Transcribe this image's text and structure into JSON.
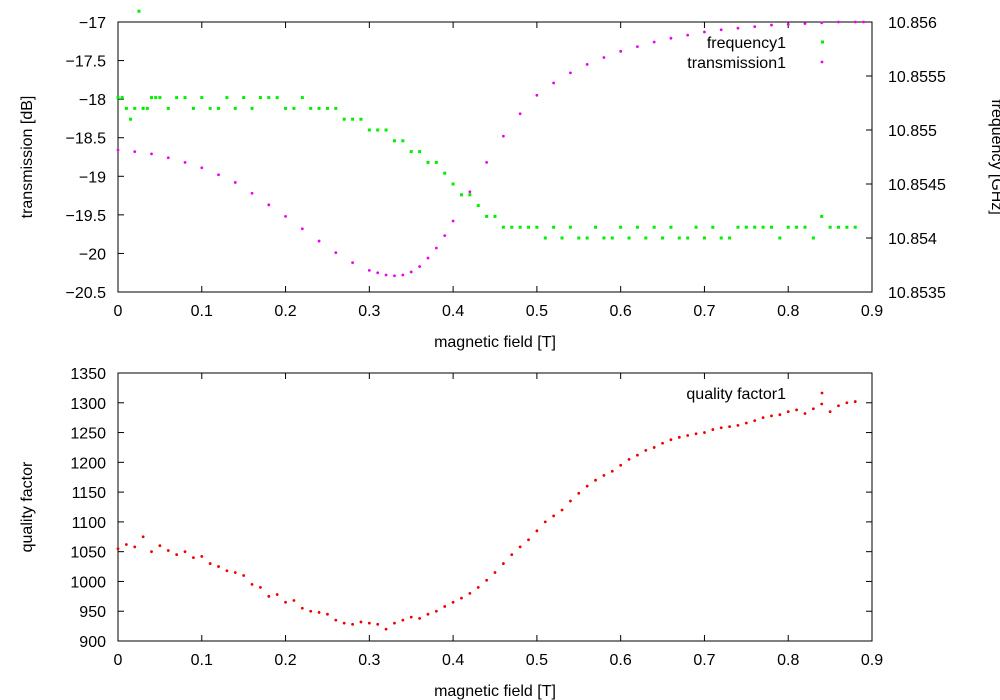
{
  "chart_data": [
    {
      "type": "scatter",
      "xlabel": "magnetic field [T]",
      "ylabel": "transmission [dB]",
      "y2label": "frequency [GHz]",
      "xlim": [
        0,
        0.9
      ],
      "ylim": [
        -20.5,
        -17
      ],
      "y2lim": [
        10.8535,
        10.856
      ],
      "xticks": [
        "0",
        "0.1",
        "0.2",
        "0.3",
        "0.4",
        "0.5",
        "0.6",
        "0.7",
        "0.8",
        "0.9"
      ],
      "yticks": [
        "-20.5",
        "-20",
        "-19.5",
        "-19",
        "-18.5",
        "-18",
        "-17.5",
        "-17"
      ],
      "y2ticks": [
        "10.8535",
        "10.854",
        "10.8545",
        "10.855",
        "10.8555",
        "10.856"
      ],
      "legend_position": "top-right",
      "series": [
        {
          "name": "frequency1",
          "axis": "y2",
          "color": "#00ee00",
          "marker": "square",
          "x": [
            0,
            0.005,
            0.01,
            0.015,
            0.02,
            0.025,
            0.03,
            0.035,
            0.04,
            0.045,
            0.05,
            0.06,
            0.07,
            0.08,
            0.09,
            0.1,
            0.11,
            0.12,
            0.13,
            0.14,
            0.15,
            0.16,
            0.17,
            0.18,
            0.19,
            0.2,
            0.21,
            0.22,
            0.23,
            0.24,
            0.25,
            0.26,
            0.27,
            0.28,
            0.29,
            0.3,
            0.31,
            0.32,
            0.33,
            0.34,
            0.35,
            0.36,
            0.37,
            0.38,
            0.39,
            0.4,
            0.41,
            0.42,
            0.43,
            0.44,
            0.45,
            0.46,
            0.47,
            0.48,
            0.49,
            0.5,
            0.51,
            0.52,
            0.53,
            0.54,
            0.55,
            0.56,
            0.57,
            0.58,
            0.59,
            0.6,
            0.61,
            0.62,
            0.63,
            0.64,
            0.65,
            0.66,
            0.67,
            0.68,
            0.69,
            0.7,
            0.71,
            0.72,
            0.73,
            0.74,
            0.75,
            0.76,
            0.77,
            0.78,
            0.79,
            0.8,
            0.81,
            0.82,
            0.83,
            0.84,
            0.85,
            0.86,
            0.87,
            0.88
          ],
          "y": [
            10.8553,
            10.8553,
            10.8552,
            10.8551,
            10.8552,
            10.8561,
            10.8552,
            10.8552,
            10.8553,
            10.8553,
            10.8553,
            10.8552,
            10.8553,
            10.8553,
            10.8552,
            10.8553,
            10.8552,
            10.8552,
            10.8553,
            10.8552,
            10.8553,
            10.8552,
            10.8553,
            10.8553,
            10.8553,
            10.8552,
            10.8552,
            10.8553,
            10.8552,
            10.8552,
            10.8552,
            10.8552,
            10.8551,
            10.8551,
            10.8551,
            10.855,
            10.855,
            10.855,
            10.8549,
            10.8549,
            10.8548,
            10.8548,
            10.8547,
            10.8547,
            10.8546,
            10.8545,
            10.8544,
            10.8544,
            10.8543,
            10.8542,
            10.8542,
            10.8541,
            10.8541,
            10.8541,
            10.8541,
            10.8541,
            10.854,
            10.8541,
            10.854,
            10.8541,
            10.854,
            10.854,
            10.8541,
            10.854,
            10.854,
            10.8541,
            10.854,
            10.8541,
            10.854,
            10.8541,
            10.854,
            10.8541,
            10.854,
            10.854,
            10.8541,
            10.854,
            10.8541,
            10.854,
            10.854,
            10.8541,
            10.8541,
            10.8541,
            10.8541,
            10.8541,
            10.854,
            10.8541,
            10.8541,
            10.8541,
            10.854,
            10.8542,
            10.8541,
            10.8541,
            10.8541,
            10.8541
          ]
        },
        {
          "name": "transmission1",
          "axis": "y",
          "color": "#ee00ee",
          "marker": "dot",
          "x": [
            0,
            0.02,
            0.04,
            0.06,
            0.08,
            0.1,
            0.12,
            0.14,
            0.16,
            0.18,
            0.2,
            0.22,
            0.24,
            0.26,
            0.28,
            0.3,
            0.31,
            0.32,
            0.33,
            0.34,
            0.35,
            0.36,
            0.37,
            0.38,
            0.39,
            0.4,
            0.42,
            0.44,
            0.46,
            0.48,
            0.5,
            0.52,
            0.54,
            0.56,
            0.58,
            0.6,
            0.62,
            0.64,
            0.66,
            0.68,
            0.7,
            0.72,
            0.74,
            0.76,
            0.78,
            0.8,
            0.82,
            0.84,
            0.86,
            0.88,
            0.89
          ],
          "y": [
            -18.66,
            -18.68,
            -18.71,
            -18.76,
            -18.82,
            -18.89,
            -18.98,
            -19.08,
            -19.22,
            -19.37,
            -19.52,
            -19.68,
            -19.84,
            -19.99,
            -20.12,
            -20.22,
            -20.25,
            -20.28,
            -20.29,
            -20.28,
            -20.24,
            -20.17,
            -20.06,
            -19.93,
            -19.77,
            -19.58,
            -19.2,
            -18.82,
            -18.48,
            -18.19,
            -17.95,
            -17.79,
            -17.66,
            -17.55,
            -17.46,
            -17.38,
            -17.32,
            -17.26,
            -17.21,
            -17.17,
            -17.13,
            -17.1,
            -17.08,
            -17.06,
            -17.04,
            -17.03,
            -17.02,
            -17.01,
            -17.0,
            -17.0,
            -17.0
          ]
        }
      ]
    },
    {
      "type": "scatter",
      "xlabel": "magnetic field [T]",
      "ylabel": "quality factor",
      "xlim": [
        0,
        0.9
      ],
      "ylim": [
        900,
        1350
      ],
      "xticks": [
        "0",
        "0.1",
        "0.2",
        "0.3",
        "0.4",
        "0.5",
        "0.6",
        "0.7",
        "0.8",
        "0.9"
      ],
      "yticks": [
        "900",
        "950",
        "1000",
        "1050",
        "1100",
        "1150",
        "1200",
        "1250",
        "1300",
        "1350"
      ],
      "legend_position": "top-right",
      "series": [
        {
          "name": "quality factor1",
          "color": "#ee0000",
          "marker": "dot",
          "x": [
            0,
            0.01,
            0.02,
            0.03,
            0.04,
            0.05,
            0.06,
            0.07,
            0.08,
            0.09,
            0.1,
            0.11,
            0.12,
            0.13,
            0.14,
            0.15,
            0.16,
            0.17,
            0.18,
            0.19,
            0.2,
            0.21,
            0.22,
            0.23,
            0.24,
            0.25,
            0.26,
            0.27,
            0.28,
            0.29,
            0.3,
            0.31,
            0.32,
            0.33,
            0.34,
            0.35,
            0.36,
            0.37,
            0.38,
            0.39,
            0.4,
            0.41,
            0.42,
            0.43,
            0.44,
            0.45,
            0.46,
            0.47,
            0.48,
            0.49,
            0.5,
            0.51,
            0.52,
            0.53,
            0.54,
            0.55,
            0.56,
            0.57,
            0.58,
            0.59,
            0.6,
            0.61,
            0.62,
            0.63,
            0.64,
            0.65,
            0.66,
            0.67,
            0.68,
            0.69,
            0.7,
            0.71,
            0.72,
            0.73,
            0.74,
            0.75,
            0.76,
            0.77,
            0.78,
            0.79,
            0.8,
            0.81,
            0.82,
            0.83,
            0.84,
            0.85,
            0.86,
            0.87,
            0.88
          ],
          "y": [
            1055,
            1062,
            1058,
            1075,
            1050,
            1060,
            1052,
            1045,
            1050,
            1040,
            1042,
            1030,
            1025,
            1018,
            1015,
            1010,
            995,
            990,
            975,
            978,
            965,
            968,
            955,
            950,
            948,
            945,
            935,
            930,
            928,
            932,
            930,
            928,
            920,
            930,
            935,
            940,
            938,
            945,
            950,
            958,
            965,
            972,
            980,
            990,
            1002,
            1015,
            1030,
            1045,
            1058,
            1070,
            1085,
            1100,
            1110,
            1120,
            1135,
            1148,
            1160,
            1170,
            1178,
            1185,
            1195,
            1205,
            1212,
            1220,
            1225,
            1232,
            1238,
            1242,
            1245,
            1248,
            1250,
            1255,
            1258,
            1260,
            1262,
            1266,
            1270,
            1275,
            1278,
            1280,
            1285,
            1288,
            1282,
            1290,
            1298,
            1285,
            1295,
            1300,
            1302
          ]
        }
      ]
    }
  ]
}
